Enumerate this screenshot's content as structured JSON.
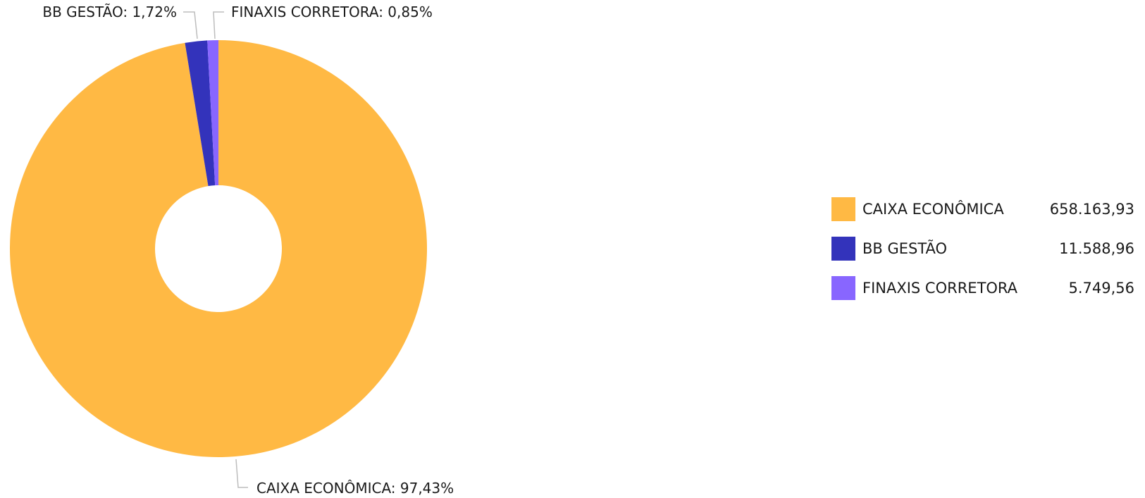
{
  "chart_data": {
    "type": "pie",
    "donut": true,
    "title": "",
    "legend_position": "right",
    "slices": [
      {
        "label": "CAIXA ECONÔMICA",
        "value": 658163.93,
        "value_text": "658.163,93",
        "percent": 97.43,
        "callout": "CAIXA ECONÔMICA: 97,43%",
        "color": "#FFB944"
      },
      {
        "label": "BB GESTÃO",
        "value": 11588.96,
        "value_text": "11.588,96",
        "percent": 1.72,
        "callout": "BB GESTÃO: 1,72%",
        "color": "#3333BB"
      },
      {
        "label": "FINAXIS CORRETORA",
        "value": 5749.56,
        "value_text": "5.749,56",
        "percent": 0.85,
        "callout": "FINAXIS CORRETORA: 0,85%",
        "color": "#8866FF"
      }
    ]
  }
}
